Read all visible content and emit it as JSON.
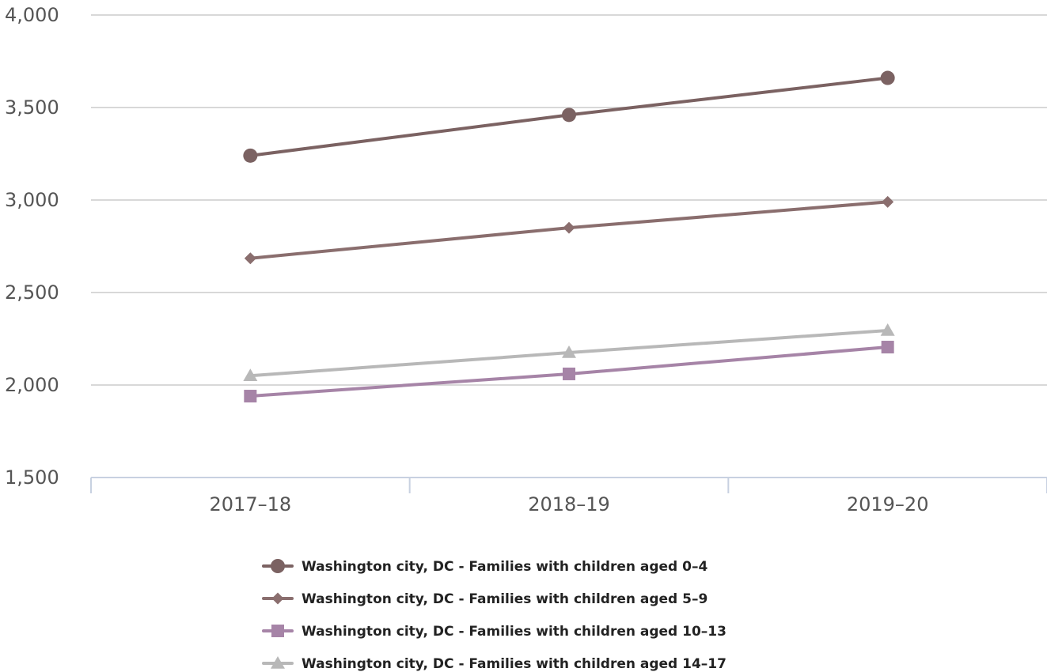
{
  "chart_data": {
    "type": "line",
    "title": "",
    "xlabel": "",
    "ylabel": "",
    "categories": [
      "2017–18",
      "2018–19",
      "2019–20"
    ],
    "y_ticks": [
      "1,500",
      "2,000",
      "2,500",
      "3,000",
      "3,500",
      "4,000"
    ],
    "ylim": [
      1500,
      4000
    ],
    "grid": true,
    "legend_position": "bottom",
    "series": [
      {
        "name": "Washington city, DC - Families with children aged 0–4",
        "values": [
          3240,
          3460,
          3660
        ],
        "color": "#7b6262",
        "marker": "circle"
      },
      {
        "name": "Washington city, DC - Families with children aged 5–9",
        "values": [
          2685,
          2850,
          2990
        ],
        "color": "#8a6e6e",
        "marker": "diamond"
      },
      {
        "name": "Washington city, DC - Families with children aged 10–13",
        "values": [
          1940,
          2060,
          2205
        ],
        "color": "#a684a7",
        "marker": "square"
      },
      {
        "name": "Washington city, DC - Families with children aged 14–17",
        "values": [
          2050,
          2175,
          2295
        ],
        "color": "#b8b8b8",
        "marker": "triangle"
      }
    ]
  }
}
